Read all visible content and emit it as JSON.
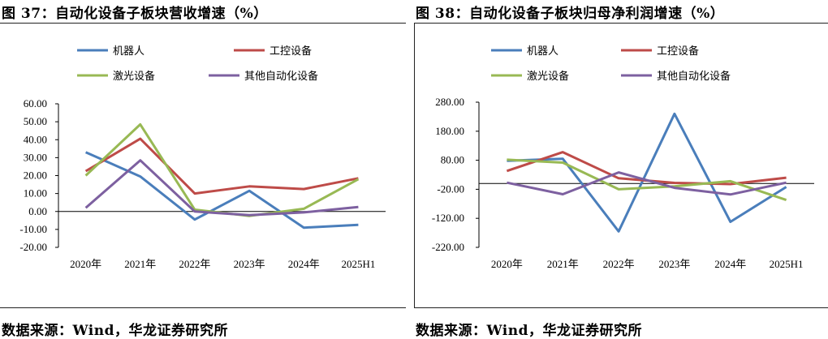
{
  "left_panel": {
    "title": "图 37：自动化设备子板块营收增速（%）",
    "source": "数据来源：Wind，华龙证券研究所"
  },
  "right_panel": {
    "title": "图 38：自动化设备子板块归母净利润增速（%）",
    "source": "数据来源：Wind，华龙证券研究所"
  },
  "chart_data": [
    {
      "type": "line",
      "title": "图 37：自动化设备子板块营收增速（%）",
      "categories": [
        "2020年",
        "2021年",
        "2022年",
        "2023年",
        "2024年",
        "2025H1"
      ],
      "ylim": [
        -20,
        60
      ],
      "yticks": [
        "60.00",
        "50.00",
        "40.00",
        "30.00",
        "20.00",
        "10.00",
        "0.00",
        "-10.00",
        "-20.00"
      ],
      "ytick_values": [
        60,
        50,
        40,
        30,
        20,
        10,
        0,
        -10,
        -20
      ],
      "legend_position": "top",
      "series": [
        {
          "name": "机器人",
          "color": "#4a7ebb",
          "values": [
            33,
            19.5,
            -4.5,
            11.5,
            -9,
            -7.5
          ]
        },
        {
          "name": "工控设备",
          "color": "#be4b48",
          "values": [
            22.5,
            40.5,
            10,
            14,
            12.5,
            18.5
          ]
        },
        {
          "name": "激光设备",
          "color": "#98b954",
          "values": [
            20,
            48.5,
            1,
            -2.5,
            1.5,
            18
          ]
        },
        {
          "name": "其他自动化设备",
          "color": "#7d60a0",
          "values": [
            2,
            28.5,
            0,
            -2,
            -0.5,
            2.5
          ]
        }
      ]
    },
    {
      "type": "line",
      "title": "图 38：自动化设备子板块归母净利润增速（%）",
      "categories": [
        "2020年",
        "2021年",
        "2022年",
        "2023年",
        "2024年",
        "2025H1"
      ],
      "ylim": [
        -220,
        280
      ],
      "yticks": [
        "280.00",
        "180.00",
        "80.00",
        "-20.00",
        "-120.00",
        "-220.00"
      ],
      "ytick_values": [
        280,
        180,
        80,
        -20,
        -120,
        -220
      ],
      "legend_position": "top",
      "series": [
        {
          "name": "机器人",
          "color": "#4a7ebb",
          "values": [
            78,
            85,
            -165,
            240,
            -132,
            -12
          ]
        },
        {
          "name": "工控设备",
          "color": "#be4b48",
          "values": [
            43,
            108,
            18,
            2,
            -2,
            20
          ]
        },
        {
          "name": "激光设备",
          "color": "#98b954",
          "values": [
            82,
            72,
            -20,
            -10,
            8,
            -57
          ]
        },
        {
          "name": "其他自动化设备",
          "color": "#7d60a0",
          "values": [
            3,
            -37,
            38,
            -15,
            -38,
            3
          ]
        }
      ]
    }
  ]
}
